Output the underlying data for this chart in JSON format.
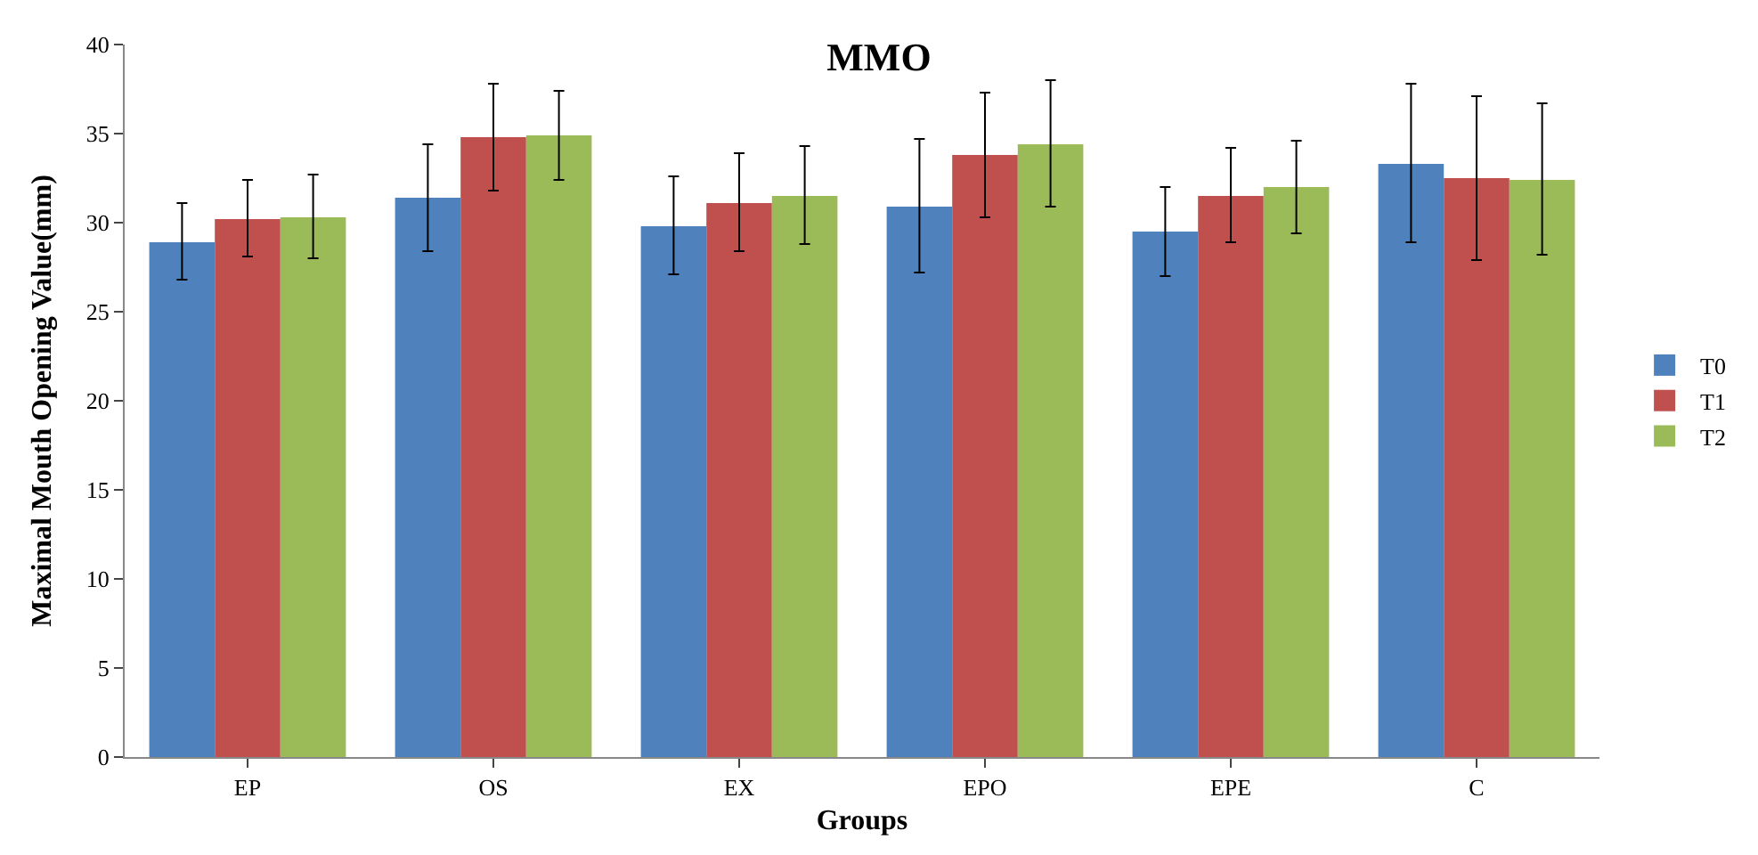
{
  "chart_data": {
    "type": "bar",
    "title": "MMO",
    "xlabel": "Groups",
    "ylabel": "Maximal Mouth Opening Value(mm)",
    "categories": [
      "EP",
      "OS",
      "EX",
      "EPO",
      "EPE",
      "C"
    ],
    "series": [
      {
        "name": "T0",
        "color": "#4f81bd",
        "values": [
          28.9,
          31.4,
          29.8,
          30.9,
          29.5,
          33.3
        ],
        "errors": [
          [
            26.8,
            31.1
          ],
          [
            28.4,
            34.4
          ],
          [
            27.1,
            32.6
          ],
          [
            27.2,
            34.7
          ],
          [
            27.0,
            32.0
          ],
          [
            28.9,
            37.8
          ]
        ]
      },
      {
        "name": "T1",
        "color": "#c0504d",
        "values": [
          30.2,
          34.8,
          31.1,
          33.8,
          31.5,
          32.5
        ],
        "errors": [
          [
            28.1,
            32.4
          ],
          [
            31.8,
            37.8
          ],
          [
            28.4,
            33.9
          ],
          [
            30.3,
            37.3
          ],
          [
            28.9,
            34.2
          ],
          [
            27.9,
            37.1
          ]
        ]
      },
      {
        "name": "T2",
        "color": "#9bbb59",
        "values": [
          30.3,
          34.9,
          31.5,
          34.4,
          32.0,
          32.4
        ],
        "errors": [
          [
            28.0,
            32.7
          ],
          [
            32.4,
            37.4
          ],
          [
            28.8,
            34.3
          ],
          [
            30.9,
            38.0
          ],
          [
            29.4,
            34.6
          ],
          [
            28.2,
            36.7
          ]
        ]
      }
    ],
    "ylim": [
      0,
      40
    ],
    "yticks": [
      0,
      5,
      10,
      15,
      20,
      25,
      30,
      35,
      40
    ],
    "legend": "right"
  }
}
